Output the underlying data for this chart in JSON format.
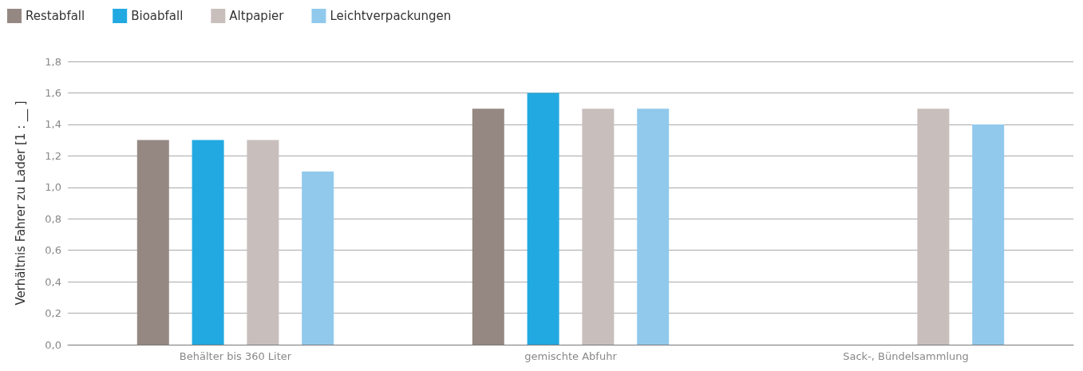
{
  "chart_data": {
    "type": "bar",
    "ylabel": "Verhältnis Fahrer zu Lader [1 : __ ]",
    "categories": [
      "Behälter bis 360 Liter",
      "gemischte Abfuhr",
      "Sack-, Bündelsammlung"
    ],
    "series": [
      {
        "name": "Restabfall",
        "color": "#958882",
        "values": [
          1.3,
          1.5,
          null
        ]
      },
      {
        "name": "Bioabfall",
        "color": "#22a9e1",
        "values": [
          1.3,
          1.6,
          null
        ]
      },
      {
        "name": "Altpapier",
        "color": "#c8bfbd",
        "values": [
          1.3,
          1.5,
          1.5
        ]
      },
      {
        "name": "Leichtverpackungen",
        "color": "#91c9ec",
        "values": [
          1.1,
          1.5,
          1.4
        ]
      }
    ],
    "ylim": [
      0,
      1.8
    ],
    "yticks": [
      {
        "value": 0,
        "label": "0,0"
      },
      {
        "value": 0.2,
        "label": "0,2"
      },
      {
        "value": 0.4,
        "label": "0,4"
      },
      {
        "value": 0.6,
        "label": "0,6"
      },
      {
        "value": 0.8,
        "label": "0,8"
      },
      {
        "value": 1.0,
        "label": "1,0"
      },
      {
        "value": 1.2,
        "label": "1,2"
      },
      {
        "value": 1.4,
        "label": "1,4"
      },
      {
        "value": 1.6,
        "label": "1,6"
      },
      {
        "value": 1.8,
        "label": "1,8"
      }
    ],
    "grid": "y",
    "legend": "top left"
  }
}
